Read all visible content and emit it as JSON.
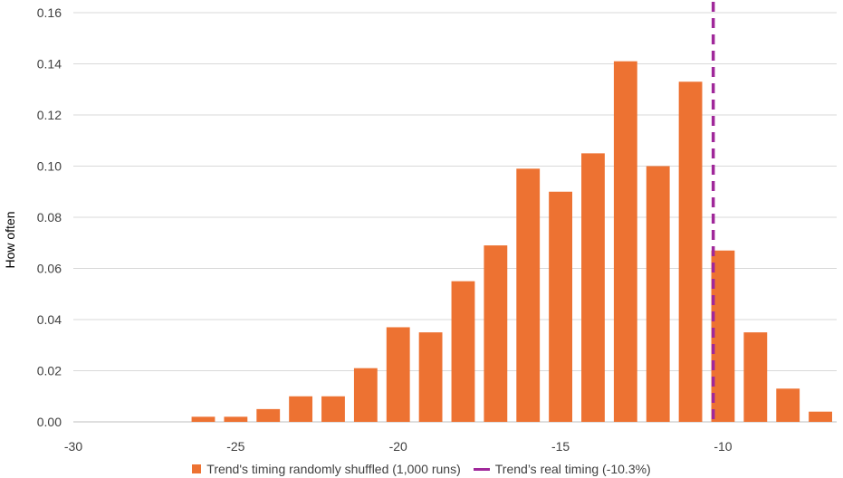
{
  "chart_data": {
    "type": "bar",
    "ylabel": "How often",
    "xlabel": "",
    "title": "",
    "xlim": [
      -30,
      -6.5
    ],
    "ylim": [
      0,
      0.16
    ],
    "x_ticks": [
      -30,
      -25,
      -20,
      -15,
      -10
    ],
    "y_ticks": [
      0.0,
      0.02,
      0.04,
      0.06,
      0.08,
      0.1,
      0.12,
      0.14,
      0.16
    ],
    "x_tick_labels": [
      "-30",
      "-25",
      "-20",
      "-15",
      "-10"
    ],
    "y_tick_labels": [
      "0.00",
      "0.02",
      "0.04",
      "0.06",
      "0.08",
      "0.10",
      "0.12",
      "0.14",
      "0.16"
    ],
    "grid": "horizontal",
    "legend_position": "bottom",
    "series": [
      {
        "name": "Trend's timing randomly shuffled (1,000 runs)",
        "type": "bar",
        "color": "#ED7232",
        "bin_width": 1,
        "x": [
          -26,
          -25,
          -24,
          -23,
          -22,
          -21,
          -20,
          -19,
          -18,
          -17,
          -16,
          -15,
          -14,
          -13,
          -12,
          -11,
          -10,
          -9,
          -8,
          -7
        ],
        "values": [
          0.002,
          0.002,
          0.005,
          0.01,
          0.01,
          0.021,
          0.037,
          0.035,
          0.055,
          0.069,
          0.099,
          0.09,
          0.105,
          0.141,
          0.1,
          0.133,
          0.067,
          0.035,
          0.013,
          0.004
        ]
      },
      {
        "name": "Trend’s real timing (-10.3%)",
        "type": "vline",
        "color": "#A0289A",
        "x": -10.3
      }
    ]
  }
}
